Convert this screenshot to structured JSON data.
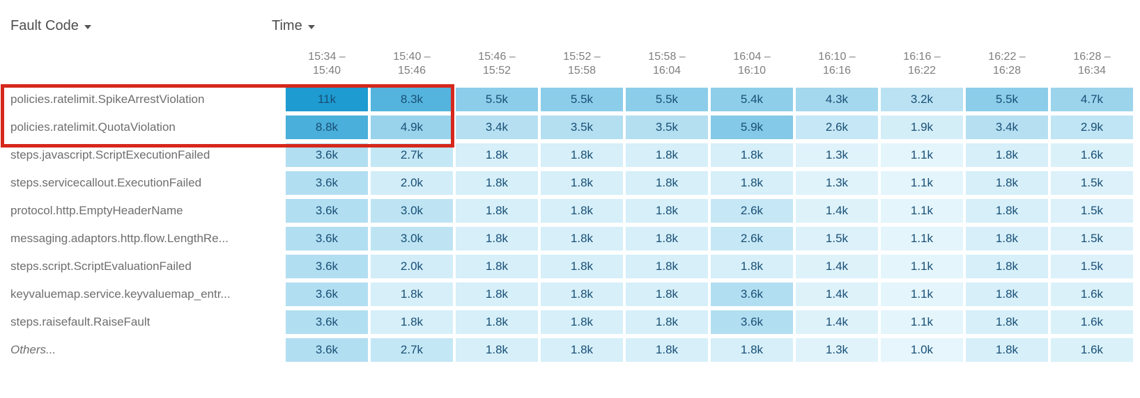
{
  "controls": {
    "row_dimension": {
      "label": "Fault Code"
    },
    "column_dimension": {
      "label": "Time"
    }
  },
  "heatmap": {
    "columns": [
      {
        "line1": "15:34 –",
        "line2": "15:40"
      },
      {
        "line1": "15:40 –",
        "line2": "15:46"
      },
      {
        "line1": "15:46 –",
        "line2": "15:52"
      },
      {
        "line1": "15:52 –",
        "line2": "15:58"
      },
      {
        "line1": "15:58 –",
        "line2": "16:04"
      },
      {
        "line1": "16:04 –",
        "line2": "16:10"
      },
      {
        "line1": "16:10 –",
        "line2": "16:16"
      },
      {
        "line1": "16:16 –",
        "line2": "16:22"
      },
      {
        "line1": "16:22 –",
        "line2": "16:28"
      },
      {
        "line1": "16:28 –",
        "line2": "16:34"
      }
    ],
    "rows": [
      {
        "label": "policies.ratelimit.SpikeArrestViolation",
        "italic": false,
        "values": [
          "11k",
          "8.3k",
          "5.5k",
          "5.5k",
          "5.5k",
          "5.4k",
          "4.3k",
          "3.2k",
          "5.5k",
          "4.7k"
        ]
      },
      {
        "label": "policies.ratelimit.QuotaViolation",
        "italic": false,
        "values": [
          "8.8k",
          "4.9k",
          "3.4k",
          "3.5k",
          "3.5k",
          "5.9k",
          "2.6k",
          "1.9k",
          "3.4k",
          "2.9k"
        ]
      },
      {
        "label": "steps.javascript.ScriptExecutionFailed",
        "italic": false,
        "values": [
          "3.6k",
          "2.7k",
          "1.8k",
          "1.8k",
          "1.8k",
          "1.8k",
          "1.3k",
          "1.1k",
          "1.8k",
          "1.6k"
        ]
      },
      {
        "label": "steps.servicecallout.ExecutionFailed",
        "italic": false,
        "values": [
          "3.6k",
          "2.0k",
          "1.8k",
          "1.8k",
          "1.8k",
          "1.8k",
          "1.3k",
          "1.1k",
          "1.8k",
          "1.5k"
        ]
      },
      {
        "label": "protocol.http.EmptyHeaderName",
        "italic": false,
        "values": [
          "3.6k",
          "3.0k",
          "1.8k",
          "1.8k",
          "1.8k",
          "2.6k",
          "1.4k",
          "1.1k",
          "1.8k",
          "1.5k"
        ]
      },
      {
        "label": "messaging.adaptors.http.flow.LengthRe...",
        "italic": false,
        "values": [
          "3.6k",
          "3.0k",
          "1.8k",
          "1.8k",
          "1.8k",
          "2.6k",
          "1.5k",
          "1.1k",
          "1.8k",
          "1.5k"
        ]
      },
      {
        "label": "steps.script.ScriptEvaluationFailed",
        "italic": false,
        "values": [
          "3.6k",
          "2.0k",
          "1.8k",
          "1.8k",
          "1.8k",
          "1.8k",
          "1.4k",
          "1.1k",
          "1.8k",
          "1.5k"
        ]
      },
      {
        "label": "keyvaluemap.service.keyvaluemap_entr...",
        "italic": false,
        "values": [
          "3.6k",
          "1.8k",
          "1.8k",
          "1.8k",
          "1.8k",
          "3.6k",
          "1.4k",
          "1.1k",
          "1.8k",
          "1.6k"
        ]
      },
      {
        "label": "steps.raisefault.RaiseFault",
        "italic": false,
        "values": [
          "3.6k",
          "1.8k",
          "1.8k",
          "1.8k",
          "1.8k",
          "3.6k",
          "1.4k",
          "1.1k",
          "1.8k",
          "1.6k"
        ]
      },
      {
        "label": "Others...",
        "italic": true,
        "values": [
          "3.6k",
          "2.7k",
          "1.8k",
          "1.8k",
          "1.8k",
          "1.8k",
          "1.3k",
          "1.0k",
          "1.8k",
          "1.6k"
        ]
      }
    ],
    "color_scale": {
      "min_value_k": 1.0,
      "max_value_k": 11.0,
      "min_color": "#e6f6fc",
      "max_color": "#1e9bd1"
    },
    "cell_text_color": "#184f76"
  },
  "annotation": {
    "type": "highlight-box",
    "color": "#d6281c"
  },
  "chart_data": {
    "type": "heatmap",
    "title": "",
    "x_dimension": "Time",
    "y_dimension": "Fault Code",
    "x_categories": [
      "15:34 – 15:40",
      "15:40 – 15:46",
      "15:46 – 15:52",
      "15:52 – 15:58",
      "15:58 – 16:04",
      "16:04 – 16:10",
      "16:10 – 16:16",
      "16:16 – 16:22",
      "16:22 – 16:28",
      "16:28 – 16:34"
    ],
    "y_categories": [
      "policies.ratelimit.SpikeArrestViolation",
      "policies.ratelimit.QuotaViolation",
      "steps.javascript.ScriptExecutionFailed",
      "steps.servicecallout.ExecutionFailed",
      "protocol.http.EmptyHeaderName",
      "messaging.adaptors.http.flow.LengthRe...",
      "steps.script.ScriptEvaluationFailed",
      "keyvaluemap.service.keyvaluemap_entr...",
      "steps.raisefault.RaiseFault",
      "Others..."
    ],
    "values_k": [
      [
        11,
        8.3,
        5.5,
        5.5,
        5.5,
        5.4,
        4.3,
        3.2,
        5.5,
        4.7
      ],
      [
        8.8,
        4.9,
        3.4,
        3.5,
        3.5,
        5.9,
        2.6,
        1.9,
        3.4,
        2.9
      ],
      [
        3.6,
        2.7,
        1.8,
        1.8,
        1.8,
        1.8,
        1.3,
        1.1,
        1.8,
        1.6
      ],
      [
        3.6,
        2.0,
        1.8,
        1.8,
        1.8,
        1.8,
        1.3,
        1.1,
        1.8,
        1.5
      ],
      [
        3.6,
        3.0,
        1.8,
        1.8,
        1.8,
        2.6,
        1.4,
        1.1,
        1.8,
        1.5
      ],
      [
        3.6,
        3.0,
        1.8,
        1.8,
        1.8,
        2.6,
        1.5,
        1.1,
        1.8,
        1.5
      ],
      [
        3.6,
        2.0,
        1.8,
        1.8,
        1.8,
        1.8,
        1.4,
        1.1,
        1.8,
        1.5
      ],
      [
        3.6,
        1.8,
        1.8,
        1.8,
        1.8,
        3.6,
        1.4,
        1.1,
        1.8,
        1.6
      ],
      [
        3.6,
        1.8,
        1.8,
        1.8,
        1.8,
        3.6,
        1.4,
        1.1,
        1.8,
        1.6
      ],
      [
        3.6,
        2.7,
        1.8,
        1.8,
        1.8,
        1.8,
        1.3,
        1.0,
        1.8,
        1.6
      ]
    ],
    "values_display": [
      [
        "11k",
        "8.3k",
        "5.5k",
        "5.5k",
        "5.5k",
        "5.4k",
        "4.3k",
        "3.2k",
        "5.5k",
        "4.7k"
      ],
      [
        "8.8k",
        "4.9k",
        "3.4k",
        "3.5k",
        "3.5k",
        "5.9k",
        "2.6k",
        "1.9k",
        "3.4k",
        "2.9k"
      ],
      [
        "3.6k",
        "2.7k",
        "1.8k",
        "1.8k",
        "1.8k",
        "1.8k",
        "1.3k",
        "1.1k",
        "1.8k",
        "1.6k"
      ],
      [
        "3.6k",
        "2.0k",
        "1.8k",
        "1.8k",
        "1.8k",
        "1.8k",
        "1.3k",
        "1.1k",
        "1.8k",
        "1.5k"
      ],
      [
        "3.6k",
        "3.0k",
        "1.8k",
        "1.8k",
        "1.8k",
        "2.6k",
        "1.4k",
        "1.1k",
        "1.8k",
        "1.5k"
      ],
      [
        "3.6k",
        "3.0k",
        "1.8k",
        "1.8k",
        "1.8k",
        "2.6k",
        "1.5k",
        "1.1k",
        "1.8k",
        "1.5k"
      ],
      [
        "3.6k",
        "2.0k",
        "1.8k",
        "1.8k",
        "1.8k",
        "1.8k",
        "1.4k",
        "1.1k",
        "1.8k",
        "1.5k"
      ],
      [
        "3.6k",
        "1.8k",
        "1.8k",
        "1.8k",
        "1.8k",
        "3.6k",
        "1.4k",
        "1.1k",
        "1.8k",
        "1.6k"
      ],
      [
        "3.6k",
        "1.8k",
        "1.8k",
        "1.8k",
        "1.8k",
        "3.6k",
        "1.4k",
        "1.1k",
        "1.8k",
        "1.6k"
      ],
      [
        "3.6k",
        "2.7k",
        "1.8k",
        "1.8k",
        "1.8k",
        "1.8k",
        "1.3k",
        "1.0k",
        "1.8k",
        "1.6k"
      ]
    ],
    "color_scale": {
      "low": "#e6f6fc",
      "high": "#1e9bd1"
    },
    "legend": "none",
    "grid": "white gaps between cells",
    "highlighted_region": {
      "rows": [
        "policies.ratelimit.SpikeArrestViolation",
        "policies.ratelimit.QuotaViolation"
      ],
      "columns": [
        "15:34 – 15:40",
        "15:40 – 15:46"
      ],
      "includes_row_labels": true,
      "border_color": "#d6281c"
    }
  }
}
